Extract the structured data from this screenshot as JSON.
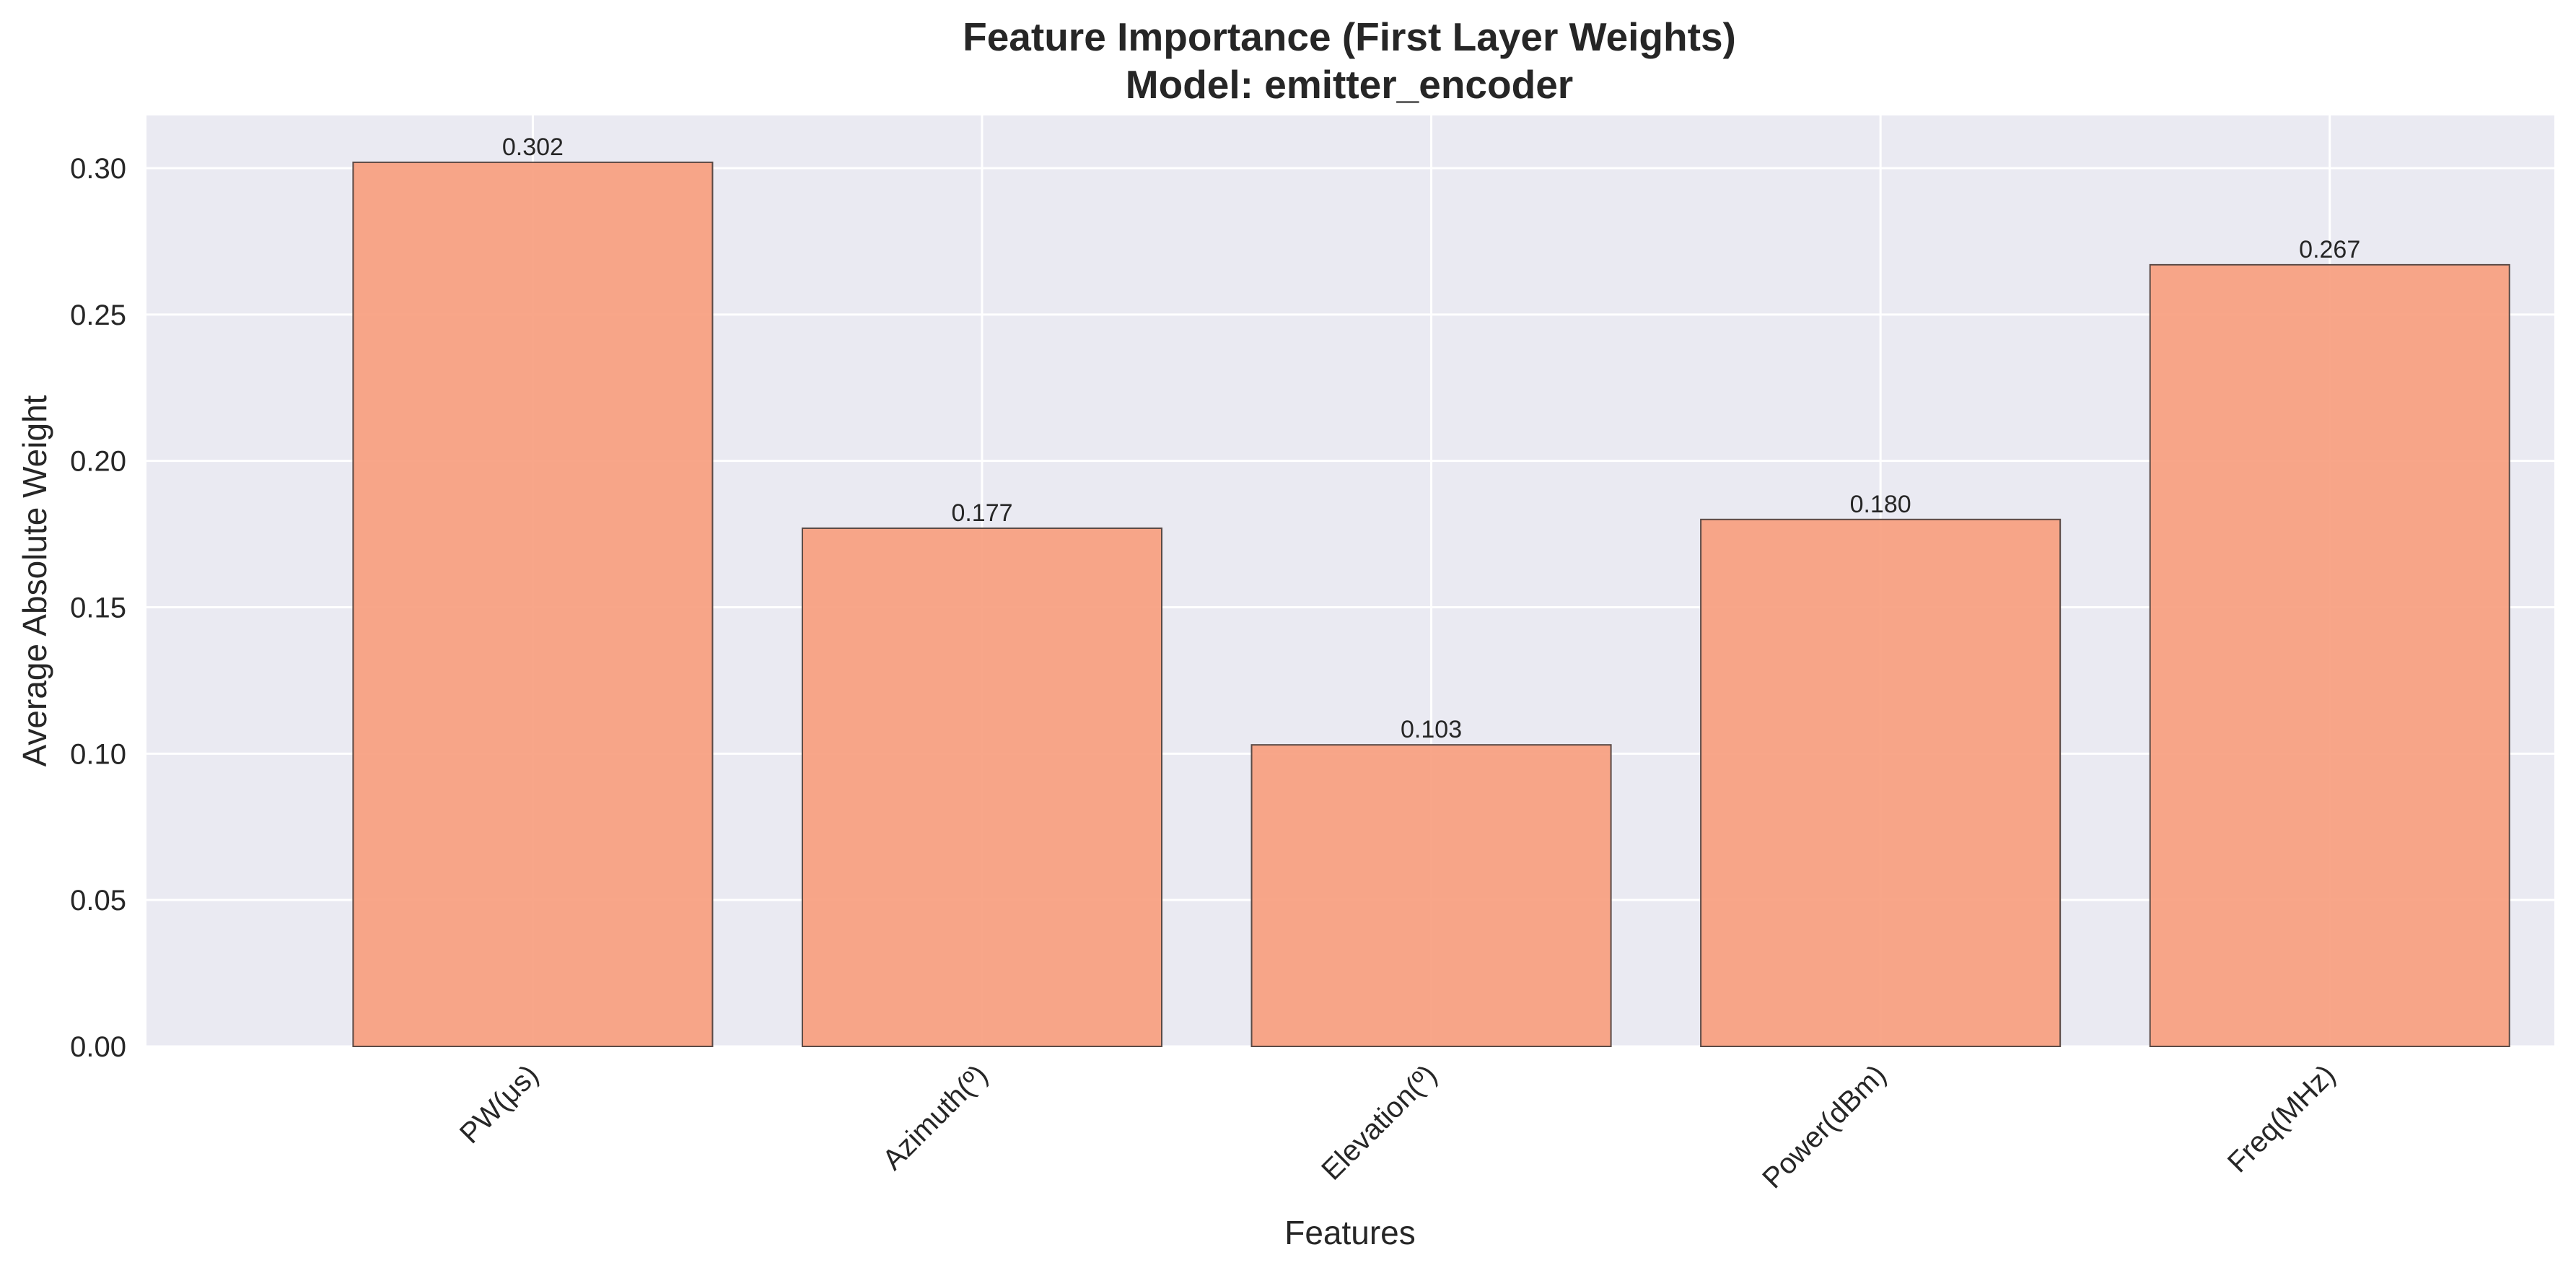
{
  "chart_data": {
    "type": "bar",
    "title": "Feature Importance (First Layer Weights)",
    "subtitle": "Model: emitter_encoder",
    "xlabel": "Features",
    "ylabel": "Average Absolute Weight",
    "categories": [
      "PW(μs)",
      "Azimuth(º)",
      "Elevation(º)",
      "Power(dBm)",
      "Freq(MHz)"
    ],
    "values": [
      0.302,
      0.177,
      0.103,
      0.18,
      0.267
    ],
    "value_labels": [
      "0.302",
      "0.177",
      "0.103",
      "0.180",
      "0.267"
    ],
    "ylim": [
      0,
      0.318
    ],
    "yticks": [
      0.0,
      0.05,
      0.1,
      0.15,
      0.2,
      0.25,
      0.3
    ],
    "ytick_labels": [
      "0.00",
      "0.05",
      "0.10",
      "0.15",
      "0.20",
      "0.25",
      "0.30"
    ],
    "grid": true,
    "colors": {
      "bar_fill": "#f79e7f",
      "bar_edge": "#5a4a46",
      "plot_background": "#eaeaf2",
      "grid": "#ffffff",
      "text": "#262626"
    }
  }
}
